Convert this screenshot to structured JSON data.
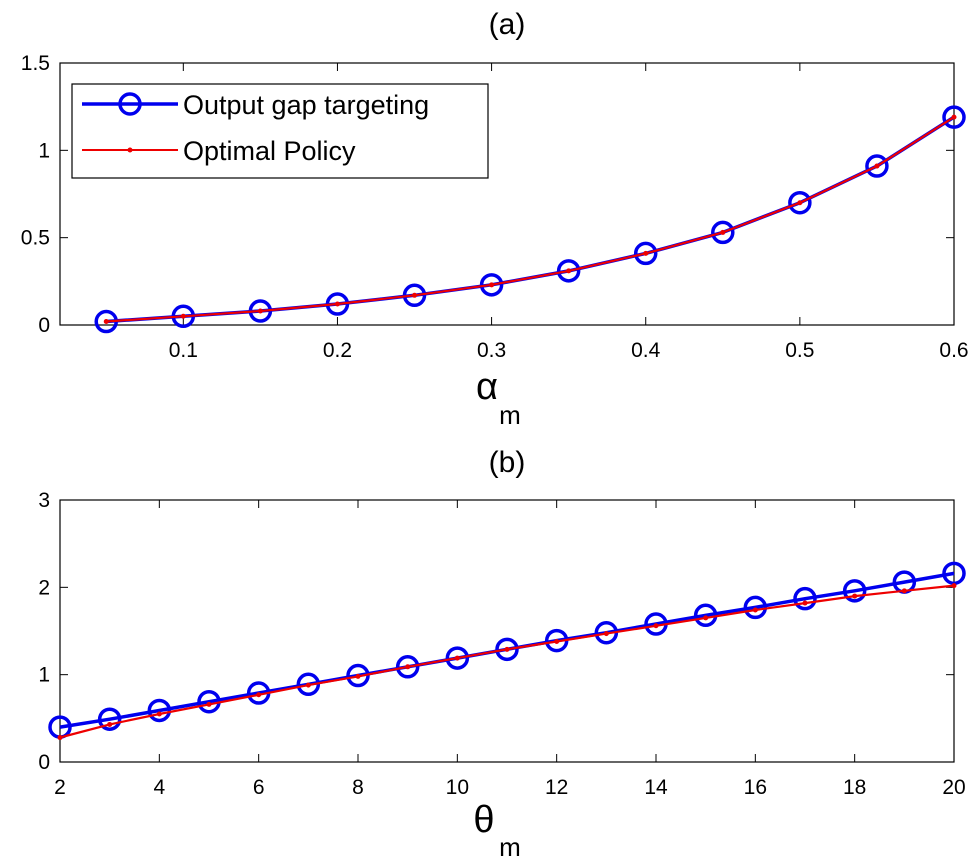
{
  "chart_data": [
    {
      "type": "line",
      "title": "(a)",
      "xlabel": "α",
      "xlabel_sub": "m",
      "ylabel": "",
      "xlim": [
        0.02,
        0.6
      ],
      "ylim": [
        0,
        1.5
      ],
      "xticks": [
        0.1,
        0.2,
        0.3,
        0.4,
        0.5,
        0.6
      ],
      "yticks": [
        0,
        0.5,
        1,
        1.5
      ],
      "xtick_labels": [
        "0.1",
        "0.2",
        "0.3",
        "0.4",
        "0.5",
        "0.6"
      ],
      "ytick_labels": [
        "0",
        "0.5",
        "1",
        "1.5"
      ],
      "grid": false,
      "legend": "top-left",
      "series": [
        {
          "name": "Output gap targeting",
          "color": "#0000ee",
          "marker": "circle",
          "x": [
            0.05,
            0.1,
            0.15,
            0.2,
            0.25,
            0.3,
            0.35,
            0.4,
            0.45,
            0.5,
            0.55,
            0.6
          ],
          "y": [
            0.02,
            0.05,
            0.08,
            0.12,
            0.17,
            0.23,
            0.31,
            0.41,
            0.53,
            0.7,
            0.91,
            1.19
          ]
        },
        {
          "name": "Optimal Policy",
          "color": "#ee0000",
          "marker": "dot",
          "x": [
            0.05,
            0.1,
            0.15,
            0.2,
            0.25,
            0.3,
            0.35,
            0.4,
            0.45,
            0.5,
            0.55,
            0.6
          ],
          "y": [
            0.02,
            0.05,
            0.08,
            0.12,
            0.17,
            0.23,
            0.31,
            0.41,
            0.53,
            0.7,
            0.91,
            1.19
          ]
        }
      ]
    },
    {
      "type": "line",
      "title": "(b)",
      "xlabel": "θ",
      "xlabel_sub": "m",
      "ylabel": "",
      "xlim": [
        2,
        20
      ],
      "ylim": [
        0,
        3
      ],
      "xticks": [
        2,
        4,
        6,
        8,
        10,
        12,
        14,
        16,
        18,
        20
      ],
      "yticks": [
        0,
        1,
        2,
        3
      ],
      "xtick_labels": [
        "2",
        "4",
        "6",
        "8",
        "10",
        "12",
        "14",
        "16",
        "18",
        "20"
      ],
      "ytick_labels": [
        "0",
        "1",
        "2",
        "3"
      ],
      "grid": false,
      "legend": "none",
      "series": [
        {
          "name": "Output gap targeting",
          "color": "#0000ee",
          "marker": "circle",
          "x": [
            2,
            3,
            4,
            5,
            6,
            7,
            8,
            9,
            10,
            11,
            12,
            13,
            14,
            15,
            16,
            17,
            18,
            19,
            20
          ],
          "y": [
            0.4,
            0.49,
            0.59,
            0.69,
            0.79,
            0.89,
            0.99,
            1.09,
            1.19,
            1.29,
            1.39,
            1.48,
            1.58,
            1.68,
            1.77,
            1.87,
            1.96,
            2.06,
            2.16
          ]
        },
        {
          "name": "Optimal Policy",
          "color": "#ee0000",
          "marker": "dot",
          "x": [
            2,
            3,
            4,
            5,
            6,
            7,
            8,
            9,
            10,
            11,
            12,
            13,
            14,
            15,
            16,
            17,
            18,
            19,
            20
          ],
          "y": [
            0.28,
            0.43,
            0.55,
            0.66,
            0.77,
            0.88,
            0.98,
            1.09,
            1.19,
            1.29,
            1.38,
            1.47,
            1.56,
            1.65,
            1.74,
            1.82,
            1.9,
            1.96,
            2.02
          ]
        }
      ]
    }
  ]
}
